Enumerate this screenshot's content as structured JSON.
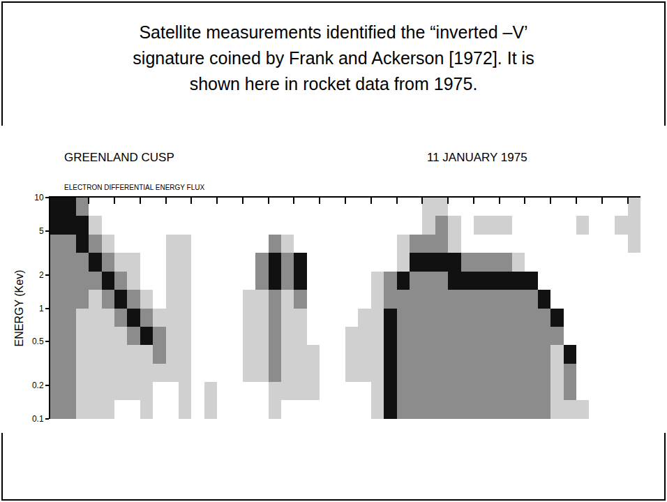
{
  "slide": {
    "heading": [
      "Satellite measurements identified the “inverted –V’",
      "signature coined by Frank and Ackerson [1972].  It is",
      "shown here in rocket data from 1975."
    ]
  },
  "chart_data": {
    "type": "heatmap",
    "title": "GREENLAND CUSP",
    "annotations": [
      "11 JANUARY 1975"
    ],
    "subtitle": "ELECTRON DIFFERENTIAL ENERGY FLUX",
    "y_label": "ENERGY (Kev)",
    "log": "y",
    "grid": false,
    "tick_labels": "y",
    "xlim": [
      0,
      23
    ],
    "xticks": [
      1.5,
      2.5,
      3.5,
      4.5,
      5.5,
      6.5,
      7.5,
      8.5,
      9.5,
      10.5,
      11.5,
      12.5,
      13.5,
      14.5,
      15.5,
      16.5,
      17.5,
      18.5,
      19.5,
      20.5,
      21.5,
      22.5
    ],
    "ylim": [
      0.1,
      10
    ],
    "yticks": [
      0.1,
      0.2,
      0.5,
      1,
      2,
      5,
      10
    ],
    "zlim": [
      0,
      3
    ],
    "colors": [
      "#ffffff",
      "#d0d0d0",
      "#8c8c8c",
      "#111111"
    ],
    "x_edges": [
      0,
      0.5,
      1,
      1.5,
      2,
      2.5,
      3,
      3.5,
      4,
      4.5,
      5,
      5.5,
      6,
      6.5,
      7,
      7.5,
      8,
      8.5,
      9,
      9.5,
      10,
      10.5,
      11,
      11.5,
      12,
      12.5,
      13,
      13.5,
      14,
      14.5,
      15,
      15.5,
      16,
      16.5,
      17,
      17.5,
      18,
      18.5,
      19,
      19.5,
      20,
      20.5,
      21,
      21.5,
      22,
      22.5,
      23
    ],
    "y_edges": [
      0.1,
      0.147,
      0.215,
      0.316,
      0.464,
      0.681,
      1,
      1.47,
      2.15,
      3.16,
      4.64,
      6.81,
      10
    ],
    "cells": [
      [
        2,
        2,
        1,
        1,
        1,
        0,
        0,
        1,
        0,
        0,
        1,
        0,
        1,
        0,
        0,
        0,
        0,
        1,
        0,
        0,
        0,
        0,
        0,
        0,
        0,
        1,
        3,
        2,
        2,
        2,
        2,
        2,
        2,
        2,
        2,
        2,
        2,
        2,
        2,
        1,
        1,
        1,
        0,
        0,
        0,
        0
      ],
      [
        2,
        2,
        1,
        1,
        1,
        1,
        1,
        1,
        0,
        0,
        1,
        0,
        1,
        0,
        0,
        0,
        0,
        1,
        1,
        1,
        1,
        0,
        0,
        0,
        0,
        1,
        3,
        2,
        2,
        2,
        2,
        2,
        2,
        2,
        2,
        2,
        2,
        2,
        2,
        1,
        2,
        0,
        0,
        0,
        0,
        0
      ],
      [
        2,
        2,
        1,
        1,
        1,
        1,
        1,
        1,
        1,
        1,
        1,
        0,
        0,
        0,
        0,
        1,
        1,
        2,
        1,
        1,
        1,
        0,
        0,
        1,
        1,
        1,
        3,
        2,
        2,
        2,
        2,
        2,
        2,
        2,
        2,
        2,
        2,
        2,
        2,
        1,
        2,
        0,
        0,
        0,
        0,
        0
      ],
      [
        2,
        2,
        1,
        1,
        1,
        1,
        1,
        1,
        2,
        1,
        1,
        0,
        0,
        0,
        0,
        1,
        1,
        2,
        1,
        1,
        1,
        0,
        0,
        1,
        1,
        1,
        3,
        2,
        2,
        2,
        2,
        2,
        2,
        2,
        2,
        2,
        2,
        2,
        2,
        1,
        3,
        0,
        0,
        0,
        0,
        0
      ],
      [
        2,
        2,
        1,
        1,
        1,
        1,
        2,
        3,
        2,
        1,
        1,
        0,
        0,
        0,
        0,
        1,
        1,
        2,
        1,
        1,
        0,
        0,
        0,
        1,
        1,
        1,
        3,
        2,
        2,
        2,
        2,
        2,
        2,
        2,
        2,
        2,
        2,
        2,
        2,
        2,
        0,
        0,
        0,
        0,
        0,
        0
      ],
      [
        2,
        2,
        1,
        1,
        1,
        2,
        3,
        2,
        1,
        1,
        1,
        0,
        0,
        0,
        0,
        1,
        1,
        2,
        1,
        1,
        0,
        0,
        0,
        0,
        1,
        1,
        3,
        2,
        2,
        2,
        2,
        2,
        2,
        2,
        2,
        2,
        2,
        2,
        2,
        3,
        0,
        0,
        0,
        0,
        0,
        0
      ],
      [
        2,
        2,
        2,
        1,
        2,
        3,
        2,
        1,
        0,
        1,
        1,
        0,
        0,
        0,
        0,
        1,
        1,
        2,
        1,
        2,
        0,
        0,
        0,
        0,
        0,
        1,
        2,
        2,
        2,
        2,
        2,
        2,
        2,
        2,
        2,
        2,
        2,
        2,
        3,
        0,
        0,
        0,
        0,
        0,
        0,
        0
      ],
      [
        2,
        2,
        2,
        2,
        3,
        2,
        1,
        0,
        0,
        1,
        1,
        0,
        0,
        0,
        0,
        0,
        2,
        3,
        2,
        3,
        0,
        0,
        0,
        0,
        0,
        1,
        2,
        3,
        2,
        2,
        2,
        3,
        3,
        3,
        3,
        3,
        3,
        3,
        0,
        0,
        0,
        0,
        0,
        0,
        0,
        0
      ],
      [
        2,
        2,
        2,
        3,
        2,
        1,
        1,
        0,
        0,
        1,
        1,
        0,
        0,
        0,
        0,
        0,
        2,
        3,
        2,
        3,
        0,
        0,
        0,
        0,
        0,
        0,
        0,
        1,
        3,
        3,
        3,
        3,
        2,
        2,
        2,
        2,
        1,
        0,
        0,
        0,
        0,
        0,
        0,
        0,
        0,
        0
      ],
      [
        2,
        2,
        3,
        2,
        1,
        0,
        0,
        0,
        0,
        1,
        1,
        0,
        0,
        0,
        0,
        0,
        0,
        2,
        1,
        0,
        0,
        0,
        0,
        0,
        0,
        0,
        0,
        1,
        2,
        2,
        2,
        1,
        0,
        0,
        0,
        0,
        0,
        0,
        0,
        0,
        0,
        0,
        0,
        0,
        0,
        1
      ],
      [
        3,
        3,
        3,
        1,
        0,
        0,
        0,
        0,
        0,
        0,
        0,
        0,
        0,
        0,
        0,
        0,
        0,
        0,
        0,
        0,
        0,
        0,
        0,
        0,
        0,
        0,
        0,
        0,
        0,
        1,
        2,
        1,
        0,
        1,
        1,
        1,
        0,
        0,
        0,
        0,
        0,
        1,
        0,
        0,
        1,
        1
      ],
      [
        3,
        3,
        2,
        0,
        0,
        0,
        0,
        0,
        0,
        0,
        0,
        0,
        0,
        0,
        0,
        0,
        0,
        0,
        0,
        0,
        0,
        0,
        0,
        0,
        0,
        0,
        0,
        0,
        0,
        1,
        1,
        0,
        0,
        0,
        0,
        0,
        0,
        0,
        0,
        0,
        0,
        0,
        0,
        0,
        0,
        1
      ]
    ]
  }
}
